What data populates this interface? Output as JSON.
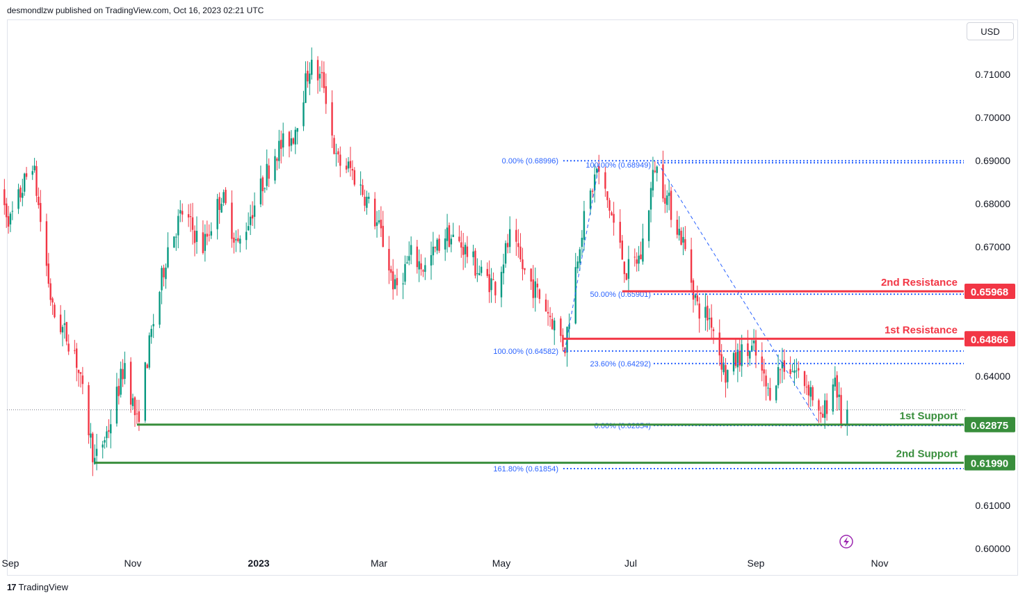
{
  "header": {
    "publish_text": "desmondlzw published on TradingView.com, Oct 16, 2023 02:21 UTC"
  },
  "currency_button": "USD",
  "footer": {
    "brand": "TradingView",
    "logo_icon": "tradingview-logo-icon"
  },
  "colors": {
    "up": "#089981",
    "down": "#f23645",
    "resistance": "#f23645",
    "support": "#388e3c",
    "fib": "#2962ff",
    "lightning": "#9c27b0"
  },
  "chart_data": {
    "type": "candlestick",
    "title": "",
    "y_axis": {
      "ticks": [
        "0.71000",
        "0.70000",
        "0.69000",
        "0.68000",
        "0.67000",
        "0.64000",
        "0.61000",
        "0.60000"
      ],
      "ylim": [
        0.6,
        0.716
      ]
    },
    "x_axis": {
      "ticks": [
        "Sep",
        "Nov",
        "2023",
        "Mar",
        "May",
        "Jul",
        "Sep",
        "Nov"
      ]
    },
    "levels": [
      {
        "label": "2nd Resistance",
        "price_label": "0.65968",
        "value": 0.65968,
        "kind": "resistance",
        "start_date": "2023-06-27"
      },
      {
        "label": "1st Resistance",
        "price_label": "0.64866",
        "value": 0.64866,
        "kind": "resistance",
        "start_date": "2023-05-30"
      },
      {
        "label": "1st Support",
        "price_label": "0.62875",
        "value": 0.62875,
        "kind": "support",
        "start_date": "2022-11-03"
      },
      {
        "label": "2nd Support",
        "price_label": "0.61990",
        "value": 0.6199,
        "kind": "support",
        "start_date": "2022-10-13"
      }
    ],
    "fib_levels": [
      {
        "label": "0.00% (0.68996)",
        "value": 0.68996
      },
      {
        "label": "100.00% (0.68949)",
        "value": 0.68949
      },
      {
        "label": "50.00% (0.65901)",
        "value": 0.65901
      },
      {
        "label": "100.00% (0.64582)",
        "value": 0.64582
      },
      {
        "label": "23.60% (0.64292)",
        "value": 0.64292
      },
      {
        "label": "0.00% (0.62854)",
        "value": 0.62854
      },
      {
        "label": "161.80% (0.61854)",
        "value": 0.61854
      }
    ],
    "last_price": 0.6322,
    "price_path": [
      [
        "2022-08-25",
        0.684
      ],
      [
        "2022-09-01",
        0.676
      ],
      [
        "2022-09-12",
        0.69
      ],
      [
        "2022-09-22",
        0.655
      ],
      [
        "2022-10-03",
        0.646
      ],
      [
        "2022-10-13",
        0.62
      ],
      [
        "2022-10-20",
        0.628
      ],
      [
        "2022-10-28",
        0.643
      ],
      [
        "2022-11-03",
        0.629
      ],
      [
        "2022-11-10",
        0.65
      ],
      [
        "2022-11-18",
        0.67
      ],
      [
        "2022-11-25",
        0.678
      ],
      [
        "2022-12-05",
        0.67
      ],
      [
        "2022-12-14",
        0.682
      ],
      [
        "2022-12-22",
        0.67
      ],
      [
        "2022-12-30",
        0.68
      ],
      [
        "2023-01-09",
        0.692
      ],
      [
        "2023-01-18",
        0.696
      ],
      [
        "2023-01-26",
        0.712
      ],
      [
        "2023-02-02",
        0.708
      ],
      [
        "2023-02-08",
        0.69
      ],
      [
        "2023-02-15",
        0.688
      ],
      [
        "2023-02-22",
        0.682
      ],
      [
        "2023-03-02",
        0.673
      ],
      [
        "2023-03-09",
        0.66
      ],
      [
        "2023-03-17",
        0.668
      ],
      [
        "2023-03-24",
        0.665
      ],
      [
        "2023-04-03",
        0.673
      ],
      [
        "2023-04-12",
        0.67
      ],
      [
        "2023-04-20",
        0.664
      ],
      [
        "2023-04-28",
        0.661
      ],
      [
        "2023-05-05",
        0.672
      ],
      [
        "2023-05-12",
        0.664
      ],
      [
        "2023-05-22",
        0.656
      ],
      [
        "2023-05-31",
        0.647
      ],
      [
        "2023-06-07",
        0.672
      ],
      [
        "2023-06-15",
        0.688
      ],
      [
        "2023-06-21",
        0.679
      ],
      [
        "2023-06-29",
        0.664
      ],
      [
        "2023-07-06",
        0.668
      ],
      [
        "2023-07-13",
        0.689
      ],
      [
        "2023-07-20",
        0.68
      ],
      [
        "2023-07-27",
        0.671
      ],
      [
        "2023-08-03",
        0.656
      ],
      [
        "2023-08-10",
        0.653
      ],
      [
        "2023-08-17",
        0.64
      ],
      [
        "2023-08-24",
        0.645
      ],
      [
        "2023-08-31",
        0.646
      ],
      [
        "2023-09-07",
        0.636
      ],
      [
        "2023-09-14",
        0.643
      ],
      [
        "2023-09-21",
        0.641
      ],
      [
        "2023-09-28",
        0.637
      ],
      [
        "2023-10-03",
        0.629
      ],
      [
        "2023-10-10",
        0.64
      ],
      [
        "2023-10-13",
        0.63
      ],
      [
        "2023-10-16",
        0.6322
      ]
    ]
  }
}
